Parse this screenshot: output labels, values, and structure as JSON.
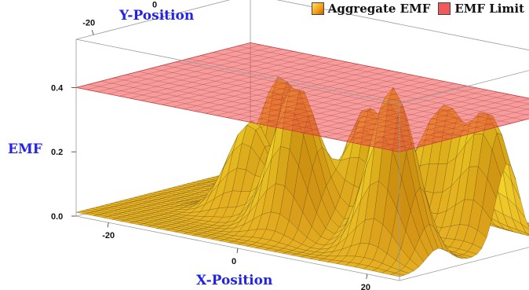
{
  "chart_data": {
    "type": "surface3d",
    "title": "",
    "xlabel": "X-Position",
    "ylabel": "Y-Position",
    "zlabel": "EMF",
    "x_ticks": [
      "-20",
      "0",
      "20"
    ],
    "y_ticks": [
      "-20",
      "0"
    ],
    "z_ticks": [
      "0.0",
      "0.2",
      "0.4"
    ],
    "xlim": [
      -25,
      25
    ],
    "ylim": [
      -25,
      25
    ],
    "zlim": [
      0,
      0.55
    ],
    "emf_limit": 0.4,
    "series": [
      {
        "name": "Aggregate EMF",
        "peaks": [
          {
            "x": -12,
            "y": 10,
            "height": 0.38
          },
          {
            "x": -8,
            "y": -6,
            "height": 0.3
          },
          {
            "x": 2,
            "y": -12,
            "height": 0.47
          },
          {
            "x": 5,
            "y": 3,
            "height": 0.36
          },
          {
            "x": 10,
            "y": -5,
            "height": 0.4
          },
          {
            "x": 14,
            "y": 8,
            "height": 0.38
          },
          {
            "x": 18,
            "y": -14,
            "height": 0.53
          },
          {
            "x": 22,
            "y": 6,
            "height": 0.4
          }
        ],
        "color": "#f5a623"
      },
      {
        "name": "EMF Limit",
        "z": 0.4,
        "color": "#ef5a5a"
      }
    ],
    "legend_position": "top-right",
    "box": true,
    "mesh": true
  }
}
